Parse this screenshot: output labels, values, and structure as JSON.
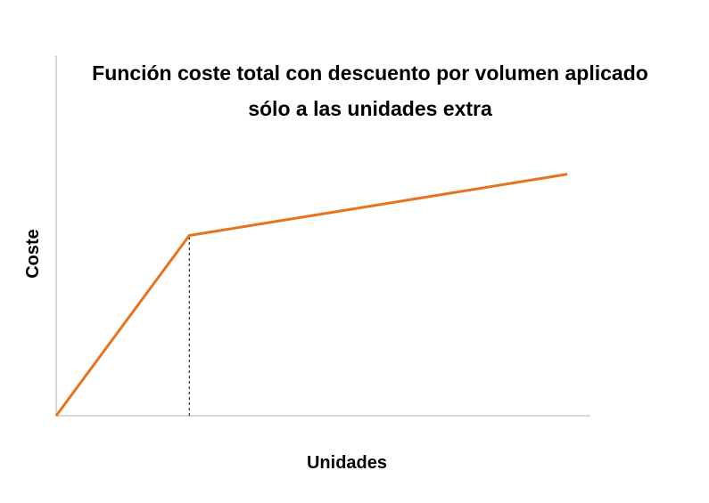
{
  "chart_data": {
    "type": "line",
    "title": "Función coste total con descuento por volumen aplicado sólo a las unidades extra",
    "x_label": "Unidades",
    "y_label": "Coste",
    "xlim": [
      0,
      100
    ],
    "ylim": [
      0,
      100
    ],
    "series": [
      {
        "color": "#e8731e",
        "x": [
          0,
          25,
          96
        ],
        "values": [
          0,
          50,
          67
        ]
      }
    ],
    "reference_x": 25
  }
}
